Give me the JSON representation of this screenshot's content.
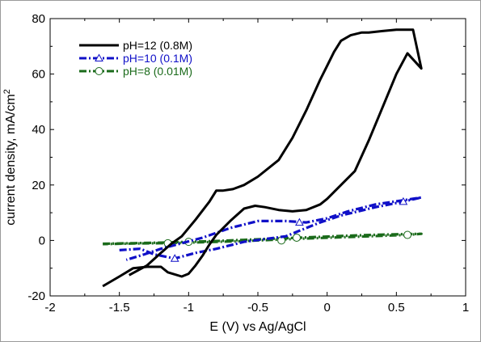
{
  "chart_data": {
    "type": "line",
    "title": "",
    "xlabel": "E (V) vs Ag/AgCl",
    "ylabel": "current density, mA/cm",
    "ylabel_sup": "2",
    "xlim": [
      -2,
      1
    ],
    "ylim": [
      -20,
      80
    ],
    "xticks": [
      -2,
      -1.5,
      -1,
      -0.5,
      0,
      0.5,
      1
    ],
    "xtick_labels": [
      "-2",
      "-1.5",
      "-1",
      "-0.5",
      "0",
      "0.5",
      "1"
    ],
    "yticks": [
      -20,
      0,
      20,
      40,
      60,
      80
    ],
    "ytick_labels": [
      "-20",
      "0",
      "20",
      "40",
      "60",
      "80"
    ],
    "grid": false,
    "legend_position": "top-left",
    "series": [
      {
        "name": "pH=12 (0.8M)",
        "color": "#000000",
        "dash": "solid",
        "marker": "none",
        "x": [
          -1.62,
          -1.5,
          -1.4,
          -1.3,
          -1.2,
          -1.15,
          -1.05,
          -1.0,
          -0.95,
          -0.9,
          -0.85,
          -0.8,
          -0.7,
          -0.6,
          -0.52,
          -0.45,
          -0.35,
          -0.25,
          -0.15,
          -0.05,
          0.0,
          0.1,
          0.2,
          0.3,
          0.4,
          0.5,
          0.58,
          0.68,
          0.62,
          0.5,
          0.4,
          0.3,
          0.25,
          0.17,
          0.1,
          0.05,
          0.0,
          -0.05,
          -0.15,
          -0.25,
          -0.35,
          -0.5,
          -0.6,
          -0.68,
          -0.75,
          -0.8,
          -0.85,
          -0.95,
          -1.05,
          -1.12,
          -1.2,
          -1.3,
          -1.43
        ],
        "y": [
          -16.5,
          -13,
          -10,
          -9.5,
          -9.5,
          -11.5,
          -13,
          -12,
          -9,
          -5.5,
          -1.5,
          2,
          7,
          11.5,
          12.5,
          12,
          11,
          10.5,
          11,
          13,
          15,
          20,
          25,
          36,
          48,
          60,
          67.5,
          62,
          76,
          76,
          75.5,
          75,
          75,
          74,
          72,
          68,
          63,
          58,
          47,
          37,
          29,
          23,
          20,
          18.5,
          18,
          18,
          14,
          7.5,
          1.5,
          -1,
          -4.5,
          -9,
          -12.5
        ]
      },
      {
        "name": "pH=10 (0.1M)",
        "color": "#1010c8",
        "dash": "dashdot",
        "marker": "triangle",
        "marker_x": [
          -1.1,
          -0.2,
          0.55
        ],
        "marker_y": [
          -6.5,
          6.5,
          14
        ],
        "x": [
          -1.5,
          -1.35,
          -1.25,
          -1.1,
          -0.95,
          -0.8,
          -0.6,
          -0.45,
          -0.3,
          -0.2,
          -0.05,
          0.1,
          0.35,
          0.55,
          0.68,
          0.55,
          0.35,
          0.15,
          0.0,
          -0.15,
          -0.3,
          -0.5,
          -0.7,
          -0.9,
          -1.05,
          -1.2,
          -1.32,
          -1.45
        ],
        "y": [
          -3.5,
          -3,
          -5,
          -6.5,
          -4.5,
          -3,
          -0.5,
          0.5,
          1.5,
          3.5,
          6.5,
          9,
          12,
          14,
          15.5,
          14.5,
          13,
          10.5,
          8,
          6.5,
          7,
          7,
          4.5,
          1,
          -1,
          -3,
          -5,
          -7
        ]
      },
      {
        "name": "pH=8 (0.01M)",
        "color": "#1a6a1a",
        "dash": "dashdot",
        "marker": "circle",
        "marker_x": [
          -1.15,
          -1.0,
          -0.33,
          -0.22,
          0.58
        ],
        "marker_y": [
          -1,
          -0.5,
          0,
          1,
          2
        ],
        "x": [
          -1.62,
          -1.4,
          -1.2,
          -1.0,
          -0.8,
          -0.6,
          -0.4,
          -0.2,
          0.0,
          0.2,
          0.4,
          0.58,
          0.68,
          0.58,
          0.4,
          0.2,
          0.0,
          -0.2,
          -0.4,
          -0.6,
          -0.8,
          -1.0,
          -1.2,
          -1.4,
          -1.62
        ],
        "y": [
          -1.2,
          -1.0,
          -0.8,
          -0.5,
          -0.2,
          0.2,
          0.6,
          1.0,
          1.4,
          1.8,
          2.1,
          2.3,
          2.4,
          2.0,
          1.7,
          1.3,
          1.0,
          0.6,
          0.2,
          -0.2,
          -0.5,
          -0.8,
          -1.0,
          -1.1,
          -1.3
        ]
      }
    ]
  }
}
